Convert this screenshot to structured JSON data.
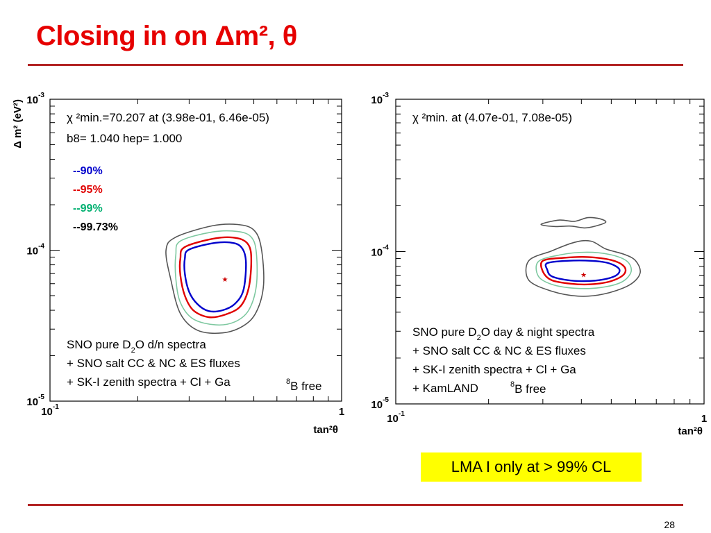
{
  "slide": {
    "title": "Closing in on Δm², θ",
    "note": "LMA I only at > 99% CL",
    "page_number": "28",
    "colors": {
      "title": "#e60000",
      "rule": "#b22222",
      "note_bg": "#ffff00"
    }
  },
  "chart_data": [
    {
      "type": "contour",
      "xscale": "log",
      "yscale": "log",
      "xlim": [
        0.1,
        1
      ],
      "ylim": [
        1e-05,
        0.001
      ],
      "xlabel": "tan²θ",
      "ylabel": "Δ m² (eV²)",
      "xticks": [
        {
          "value": 0.1,
          "base": "10",
          "exp": "-1"
        },
        {
          "value": 1,
          "base": "1",
          "exp": ""
        }
      ],
      "yticks": [
        {
          "value": 0.001,
          "base": "10",
          "exp": "-3"
        },
        {
          "value": 0.0001,
          "base": "10",
          "exp": "-4"
        },
        {
          "value": 1e-05,
          "base": "10",
          "exp": "-5"
        }
      ],
      "info_lines": [
        "χ ²min.=70.207 at (3.98e-01, 6.46e-05)",
        "b8= 1.040 hep= 1.000"
      ],
      "best_fit": {
        "x": 0.398,
        "y": 6.46e-05
      },
      "legend": [
        {
          "label": "--90%",
          "color": "#0000cc"
        },
        {
          "label": "--95%",
          "color": "#e00000"
        },
        {
          "label": "--99%",
          "color": "#00b070"
        },
        {
          "label": "--99.73%",
          "color": "#000000"
        }
      ],
      "contours": [
        {
          "level": "99.73%",
          "color": "#555555",
          "points": [
            [
              0.27,
              0.000122
            ],
            [
              0.36,
              0.000145
            ],
            [
              0.44,
              0.000148
            ],
            [
              0.5,
              0.000136
            ],
            [
              0.53,
              0.000104
            ],
            [
              0.54,
              5.9e-05
            ],
            [
              0.51,
              3.9e-05
            ],
            [
              0.46,
              3.15e-05
            ],
            [
              0.39,
              2.83e-05
            ],
            [
              0.32,
              2.95e-05
            ],
            [
              0.28,
              3.8e-05
            ],
            [
              0.26,
              6.3e-05
            ],
            [
              0.25,
              0.0001
            ]
          ]
        },
        {
          "level": "99%",
          "color": "#7ec8a0",
          "points": [
            [
              0.28,
              0.000115
            ],
            [
              0.36,
              0.000132
            ],
            [
              0.44,
              0.000133
            ],
            [
              0.49,
              0.000122
            ],
            [
              0.51,
              9.6e-05
            ],
            [
              0.51,
              5.8e-05
            ],
            [
              0.48,
              4e-05
            ],
            [
              0.43,
              3.35e-05
            ],
            [
              0.37,
              3.2e-05
            ],
            [
              0.31,
              3.5e-05
            ],
            [
              0.28,
              4.5e-05
            ],
            [
              0.27,
              6.5e-05
            ],
            [
              0.27,
              9.3e-05
            ]
          ]
        },
        {
          "level": "95%",
          "color": "#e00000",
          "points": [
            [
              0.29,
              0.000105
            ],
            [
              0.37,
              0.00012
            ],
            [
              0.44,
              0.00012
            ],
            [
              0.48,
              0.000108
            ],
            [
              0.49,
              8.5e-05
            ],
            [
              0.48,
              5.6e-05
            ],
            [
              0.45,
              4.25e-05
            ],
            [
              0.4,
              3.75e-05
            ],
            [
              0.35,
              3.6e-05
            ],
            [
              0.31,
              4e-05
            ],
            [
              0.29,
              5e-05
            ],
            [
              0.28,
              6.8e-05
            ],
            [
              0.28,
              8.8e-05
            ]
          ]
        },
        {
          "level": "90%",
          "color": "#0000cc",
          "points": [
            [
              0.3,
              0.000101
            ],
            [
              0.37,
              0.000112
            ],
            [
              0.43,
              0.000111
            ],
            [
              0.46,
              0.0001
            ],
            [
              0.47,
              8e-05
            ],
            [
              0.46,
              5.4e-05
            ],
            [
              0.43,
              4.4e-05
            ],
            [
              0.39,
              4e-05
            ],
            [
              0.35,
              3.95e-05
            ],
            [
              0.32,
              4.4e-05
            ],
            [
              0.3,
              5.3e-05
            ],
            [
              0.29,
              7e-05
            ],
            [
              0.29,
              8.8e-05
            ]
          ]
        }
      ],
      "caption_lines": [
        {
          "pre": "SNO pure D",
          "sub": "2",
          "post": "O d/n spectra"
        },
        {
          "pre": "+ SNO salt CC & NC & ES fluxes",
          "sub": "",
          "post": ""
        },
        {
          "pre": "+ SK-I zenith spectra + Cl + Ga",
          "sub": "",
          "post": ""
        }
      ],
      "b8_label": {
        "sup": "8",
        "text": "B free"
      }
    },
    {
      "type": "contour",
      "xscale": "log",
      "yscale": "log",
      "xlim": [
        0.1,
        1
      ],
      "ylim": [
        1e-05,
        0.001
      ],
      "xlabel": "tan²θ",
      "xticks": [
        {
          "value": 0.1,
          "base": "10",
          "exp": "-1"
        },
        {
          "value": 1,
          "base": "1",
          "exp": ""
        }
      ],
      "yticks": [
        {
          "value": 0.001,
          "base": "10",
          "exp": "-3"
        },
        {
          "value": 0.0001,
          "base": "10",
          "exp": "-4"
        },
        {
          "value": 1e-05,
          "base": "10",
          "exp": "-5"
        }
      ],
      "info_lines": [
        "χ ²min.  at (4.07e-01, 7.08e-05)"
      ],
      "best_fit": {
        "x": 0.407,
        "y": 7.08e-05
      },
      "contours": [
        {
          "level": "99.73% (upper island)",
          "color": "#555555",
          "points": [
            [
              0.3,
              0.000153
            ],
            [
              0.34,
              0.000161
            ],
            [
              0.38,
              0.000158
            ],
            [
              0.42,
              0.000167
            ],
            [
              0.46,
              0.000164
            ],
            [
              0.48,
              0.000156
            ],
            [
              0.45,
              0.000148
            ],
            [
              0.41,
              0.000143
            ],
            [
              0.37,
              0.000147
            ],
            [
              0.33,
              0.000146
            ],
            [
              0.3,
              0.000149
            ]
          ]
        },
        {
          "level": "99.73%",
          "color": "#555555",
          "points": [
            [
              0.27,
              8.7e-05
            ],
            [
              0.32,
              0.000101
            ],
            [
              0.38,
              0.000115
            ],
            [
              0.43,
              0.000117
            ],
            [
              0.48,
              0.000104
            ],
            [
              0.55,
              9.6e-05
            ],
            [
              0.6,
              8.7e-05
            ],
            [
              0.62,
              7.2e-05
            ],
            [
              0.57,
              6e-05
            ],
            [
              0.47,
              5.25e-05
            ],
            [
              0.39,
              5.1e-05
            ],
            [
              0.32,
              5.5e-05
            ],
            [
              0.27,
              6.5e-05
            ]
          ]
        },
        {
          "level": "99%",
          "color": "#7ec8a0",
          "points": [
            [
              0.29,
              8.6e-05
            ],
            [
              0.34,
              9.5e-05
            ],
            [
              0.41,
              9.9e-05
            ],
            [
              0.49,
              9.6e-05
            ],
            [
              0.56,
              8.7e-05
            ],
            [
              0.58,
              7.4e-05
            ],
            [
              0.54,
              6.3e-05
            ],
            [
              0.46,
              5.8e-05
            ],
            [
              0.38,
              5.75e-05
            ],
            [
              0.32,
              6.1e-05
            ],
            [
              0.29,
              6.9e-05
            ]
          ]
        },
        {
          "level": "95%",
          "color": "#e00000",
          "points": [
            [
              0.3,
              8.7e-05
            ],
            [
              0.35,
              9.1e-05
            ],
            [
              0.42,
              9.2e-05
            ],
            [
              0.5,
              8.8e-05
            ],
            [
              0.55,
              8e-05
            ],
            [
              0.55,
              7.1e-05
            ],
            [
              0.5,
              6.4e-05
            ],
            [
              0.43,
              6.1e-05
            ],
            [
              0.37,
              6.15e-05
            ],
            [
              0.32,
              6.5e-05
            ],
            [
              0.3,
              7.4e-05
            ]
          ]
        },
        {
          "level": "90%",
          "color": "#0000cc",
          "points": [
            [
              0.31,
              8.4e-05
            ],
            [
              0.36,
              8.7e-05
            ],
            [
              0.43,
              8.7e-05
            ],
            [
              0.49,
              8.4e-05
            ],
            [
              0.53,
              7.7e-05
            ],
            [
              0.52,
              7e-05
            ],
            [
              0.47,
              6.55e-05
            ],
            [
              0.41,
              6.4e-05
            ],
            [
              0.36,
              6.5e-05
            ],
            [
              0.32,
              6.9e-05
            ],
            [
              0.31,
              7.6e-05
            ]
          ]
        }
      ],
      "caption_lines": [
        {
          "pre": "SNO pure D",
          "sub": "2",
          "post": "O day & night spectra"
        },
        {
          "pre": "+ SNO salt CC & NC & ES fluxes",
          "sub": "",
          "post": ""
        },
        {
          "pre": "+ SK-I zenith spectra + Cl + Ga",
          "sub": "",
          "post": ""
        },
        {
          "pre": "+ KamLAND",
          "sub": "",
          "post": ""
        }
      ],
      "b8_label": {
        "sup": "8",
        "text": "B free"
      }
    }
  ]
}
